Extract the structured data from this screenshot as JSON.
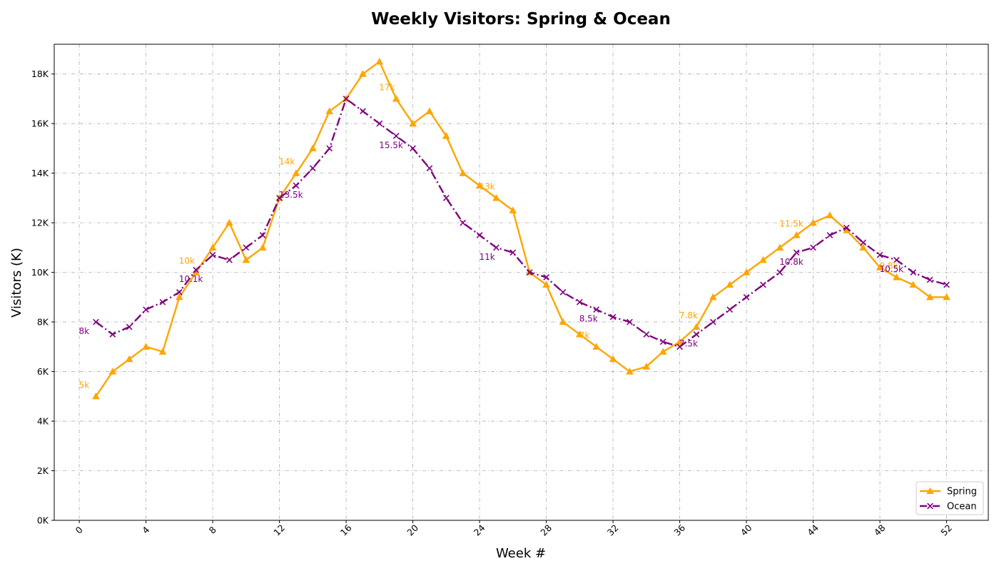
{
  "chart_data": {
    "type": "line",
    "title": "Weekly Visitors: Spring & Ocean",
    "xlabel": "Week #",
    "ylabel": "Visitors (K)",
    "xlim": [
      -1.5,
      54.5
    ],
    "ylim": [
      0,
      19200
    ],
    "xticks": [
      0,
      4,
      8,
      12,
      16,
      20,
      24,
      28,
      32,
      36,
      40,
      44,
      48,
      52
    ],
    "yticks": [
      0,
      2000,
      4000,
      6000,
      8000,
      10000,
      12000,
      14000,
      16000,
      18000
    ],
    "ytick_labels": [
      "0K",
      "2K",
      "4K",
      "6K",
      "8K",
      "10K",
      "12K",
      "14K",
      "16K",
      "18K"
    ],
    "grid": true,
    "legend_position": "lower-right",
    "x": [
      1,
      2,
      3,
      4,
      5,
      6,
      7,
      8,
      9,
      10,
      11,
      12,
      13,
      14,
      15,
      16,
      17,
      18,
      19,
      20,
      21,
      22,
      23,
      24,
      25,
      26,
      27,
      28,
      29,
      30,
      31,
      32,
      33,
      34,
      35,
      36,
      37,
      38,
      39,
      40,
      41,
      42,
      43,
      44,
      45,
      46,
      47,
      48,
      49,
      50,
      51,
      52
    ],
    "series": [
      {
        "name": "Spring",
        "color": "#ffa500",
        "marker": "triangle",
        "line_style": "solid",
        "values": [
          5000,
          6000,
          6500,
          7000,
          6800,
          9000,
          10000,
          11000,
          12000,
          10500,
          11000,
          13000,
          14000,
          15000,
          16500,
          17000,
          18000,
          18500,
          17000,
          16000,
          16500,
          15500,
          14000,
          13500,
          13000,
          12500,
          10000,
          9500,
          8000,
          7500,
          7000,
          6500,
          6000,
          6200,
          6800,
          7200,
          7800,
          9000,
          9500,
          10000,
          10500,
          11000,
          11500,
          12000,
          12300,
          11700,
          11000,
          10200,
          9800,
          9500,
          9000,
          9000
        ],
        "annotations": [
          {
            "x": 1,
            "y": 5000,
            "text": "5k"
          },
          {
            "x": 7,
            "y": 10000,
            "text": "10k"
          },
          {
            "x": 13,
            "y": 14000,
            "text": "14k"
          },
          {
            "x": 19,
            "y": 17000,
            "text": "17k"
          },
          {
            "x": 25,
            "y": 13000,
            "text": "13k"
          },
          {
            "x": 31,
            "y": 7000,
            "text": "7k"
          },
          {
            "x": 37,
            "y": 7800,
            "text": "7.8k"
          },
          {
            "x": 43,
            "y": 11500,
            "text": "11.5k"
          },
          {
            "x": 49,
            "y": 9800,
            "text": "9.8k"
          }
        ]
      },
      {
        "name": "Ocean",
        "color": "#800080",
        "marker": "x",
        "line_style": "dashdot",
        "values": [
          8000,
          7500,
          7800,
          8500,
          8800,
          9200,
          10100,
          10700,
          10500,
          11000,
          11500,
          13000,
          13500,
          14200,
          15000,
          17000,
          16500,
          16000,
          15500,
          15000,
          14200,
          13000,
          12000,
          11500,
          11000,
          10800,
          10000,
          9800,
          9200,
          8800,
          8500,
          8200,
          8000,
          7500,
          7200,
          7000,
          7500,
          8000,
          8500,
          9000,
          9500,
          10000,
          10800,
          11000,
          11500,
          11800,
          11200,
          10700,
          10500,
          10000,
          9700,
          9500
        ],
        "annotations": [
          {
            "x": 1,
            "y": 8000,
            "text": "8k"
          },
          {
            "x": 7,
            "y": 10100,
            "text": "10.1k"
          },
          {
            "x": 13,
            "y": 13500,
            "text": "13.5k"
          },
          {
            "x": 19,
            "y": 15500,
            "text": "15.5k"
          },
          {
            "x": 25,
            "y": 11000,
            "text": "11k"
          },
          {
            "x": 31,
            "y": 8500,
            "text": "8.5k"
          },
          {
            "x": 37,
            "y": 7500,
            "text": "7.5k"
          },
          {
            "x": 43,
            "y": 10800,
            "text": "10.8k"
          },
          {
            "x": 49,
            "y": 10500,
            "text": "10.5k"
          }
        ]
      }
    ]
  }
}
